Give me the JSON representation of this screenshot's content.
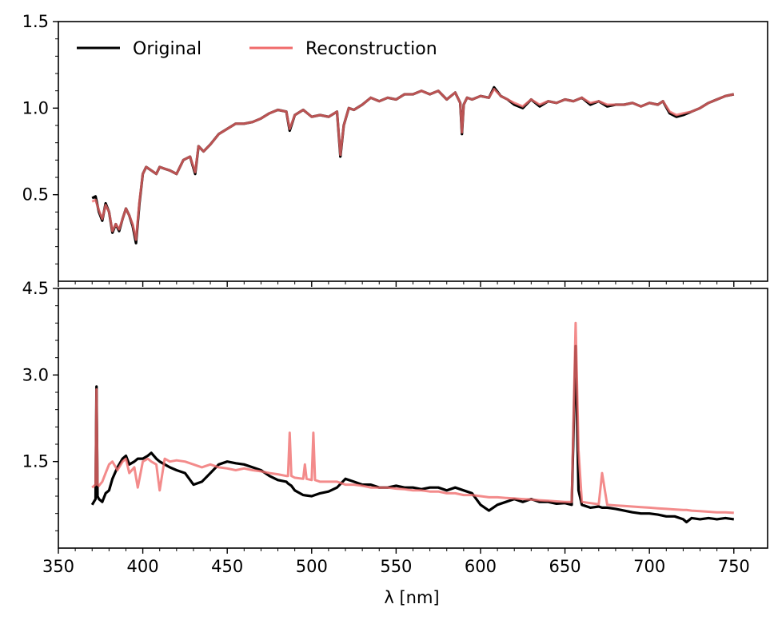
{
  "legend": {
    "original": "Original",
    "reconstruction": "Reconstruction",
    "placement": "top-left"
  },
  "colors": {
    "original": "#000000",
    "reconstruction": "#f06a6a",
    "overlap": "#8b0000",
    "axes": "#000000"
  },
  "chart_data": [
    {
      "type": "line",
      "panel": "top",
      "title": "",
      "xlabel": "",
      "ylabel": "",
      "xlim": [
        350,
        770
      ],
      "ylim": [
        0.0,
        1.5
      ],
      "yticks": [
        0.5,
        1.0,
        1.5
      ],
      "ytick_labels": [
        "0.5",
        "1.0",
        "1.5"
      ],
      "series": [
        {
          "name": "Original",
          "x": [
            370,
            372,
            374,
            376,
            378,
            380,
            382,
            384,
            386,
            388,
            390,
            392,
            394,
            396,
            398,
            400,
            402,
            405,
            408,
            410,
            413,
            416,
            420,
            424,
            428,
            431,
            433,
            436,
            440,
            445,
            450,
            455,
            460,
            465,
            470,
            475,
            480,
            485,
            487,
            490,
            495,
            500,
            505,
            510,
            515,
            517,
            519,
            522,
            525,
            530,
            535,
            540,
            545,
            550,
            555,
            560,
            565,
            570,
            575,
            580,
            585,
            588,
            589,
            590,
            592,
            595,
            600,
            605,
            608,
            612,
            616,
            620,
            625,
            630,
            635,
            640,
            645,
            650,
            655,
            660,
            665,
            670,
            675,
            680,
            685,
            690,
            695,
            700,
            705,
            708,
            712,
            716,
            720,
            725,
            730,
            735,
            740,
            745,
            750
          ],
          "y": [
            0.48,
            0.49,
            0.4,
            0.35,
            0.45,
            0.4,
            0.28,
            0.33,
            0.29,
            0.36,
            0.42,
            0.38,
            0.32,
            0.22,
            0.45,
            0.62,
            0.66,
            0.64,
            0.62,
            0.66,
            0.65,
            0.64,
            0.62,
            0.7,
            0.72,
            0.62,
            0.78,
            0.75,
            0.79,
            0.85,
            0.88,
            0.91,
            0.91,
            0.92,
            0.94,
            0.97,
            0.99,
            0.98,
            0.87,
            0.96,
            0.99,
            0.95,
            0.96,
            0.95,
            0.98,
            0.72,
            0.9,
            1.0,
            0.99,
            1.02,
            1.06,
            1.04,
            1.06,
            1.05,
            1.08,
            1.08,
            1.1,
            1.08,
            1.1,
            1.05,
            1.09,
            1.03,
            0.85,
            1.02,
            1.06,
            1.05,
            1.07,
            1.06,
            1.12,
            1.07,
            1.05,
            1.02,
            1.0,
            1.05,
            1.01,
            1.04,
            1.03,
            1.05,
            1.04,
            1.06,
            1.02,
            1.04,
            1.01,
            1.02,
            1.02,
            1.03,
            1.01,
            1.03,
            1.02,
            1.04,
            0.97,
            0.95,
            0.96,
            0.98,
            1.0,
            1.03,
            1.05,
            1.07,
            1.08
          ]
        },
        {
          "name": "Reconstruction",
          "x": [
            370,
            372,
            374,
            376,
            378,
            380,
            382,
            384,
            386,
            388,
            390,
            392,
            394,
            396,
            398,
            400,
            402,
            405,
            408,
            410,
            413,
            416,
            420,
            424,
            428,
            431,
            433,
            436,
            440,
            445,
            450,
            455,
            460,
            465,
            470,
            475,
            480,
            485,
            487,
            490,
            495,
            500,
            505,
            510,
            515,
            517,
            519,
            522,
            525,
            530,
            535,
            540,
            545,
            550,
            555,
            560,
            565,
            570,
            575,
            580,
            585,
            588,
            589,
            590,
            592,
            595,
            600,
            605,
            608,
            612,
            616,
            620,
            625,
            630,
            635,
            640,
            645,
            650,
            655,
            660,
            665,
            670,
            675,
            680,
            685,
            690,
            695,
            700,
            705,
            708,
            712,
            716,
            720,
            725,
            730,
            735,
            740,
            745,
            750
          ],
          "y": [
            0.46,
            0.47,
            0.41,
            0.36,
            0.44,
            0.4,
            0.29,
            0.33,
            0.3,
            0.36,
            0.42,
            0.38,
            0.33,
            0.24,
            0.46,
            0.62,
            0.66,
            0.64,
            0.62,
            0.66,
            0.65,
            0.64,
            0.62,
            0.7,
            0.72,
            0.63,
            0.78,
            0.75,
            0.79,
            0.85,
            0.88,
            0.91,
            0.91,
            0.92,
            0.94,
            0.97,
            0.99,
            0.98,
            0.88,
            0.96,
            0.99,
            0.95,
            0.96,
            0.95,
            0.98,
            0.73,
            0.9,
            1.0,
            0.99,
            1.02,
            1.06,
            1.04,
            1.06,
            1.05,
            1.08,
            1.08,
            1.1,
            1.08,
            1.1,
            1.05,
            1.09,
            1.03,
            0.86,
            1.02,
            1.06,
            1.05,
            1.07,
            1.06,
            1.11,
            1.07,
            1.05,
            1.03,
            1.01,
            1.05,
            1.02,
            1.04,
            1.03,
            1.05,
            1.04,
            1.06,
            1.03,
            1.04,
            1.02,
            1.02,
            1.02,
            1.03,
            1.01,
            1.03,
            1.02,
            1.04,
            0.98,
            0.96,
            0.97,
            0.98,
            1.0,
            1.03,
            1.05,
            1.07,
            1.08
          ]
        }
      ]
    },
    {
      "type": "line",
      "panel": "bottom",
      "title": "",
      "xlabel": "λ [nm]",
      "ylabel": "",
      "xlim": [
        350,
        770
      ],
      "ylim": [
        0.0,
        4.5
      ],
      "xticks": [
        350,
        400,
        450,
        500,
        550,
        600,
        650,
        700,
        750
      ],
      "xtick_labels": [
        "350",
        "400",
        "450",
        "500",
        "550",
        "600",
        "650",
        "700",
        "750"
      ],
      "yticks": [
        1.5,
        3.0,
        4.5
      ],
      "ytick_labels": [
        "1.5",
        "3.0",
        "4.5"
      ],
      "series": [
        {
          "name": "Original",
          "x": [
            370,
            372,
            372.6,
            373.2,
            374,
            376,
            378,
            380,
            382,
            385,
            388,
            390,
            392,
            395,
            397,
            400,
            403,
            405,
            408,
            410,
            413,
            416,
            420,
            425,
            430,
            435,
            440,
            445,
            450,
            455,
            460,
            465,
            470,
            475,
            480,
            485,
            486,
            487,
            488,
            490,
            495,
            500,
            505,
            510,
            515,
            520,
            525,
            530,
            535,
            540,
            545,
            550,
            555,
            560,
            565,
            570,
            575,
            580,
            585,
            590,
            595,
            600,
            605,
            610,
            615,
            620,
            625,
            630,
            635,
            640,
            645,
            650,
            654,
            656.3,
            658,
            660,
            665,
            670,
            672,
            675,
            680,
            685,
            690,
            695,
            700,
            705,
            710,
            715,
            720,
            722,
            725,
            730,
            735,
            740,
            745,
            750
          ],
          "y": [
            0.75,
            0.85,
            2.8,
            0.9,
            0.85,
            0.8,
            0.95,
            1.0,
            1.2,
            1.4,
            1.55,
            1.6,
            1.45,
            1.5,
            1.55,
            1.55,
            1.6,
            1.65,
            1.55,
            1.5,
            1.45,
            1.4,
            1.35,
            1.3,
            1.1,
            1.15,
            1.3,
            1.45,
            1.5,
            1.47,
            1.45,
            1.4,
            1.35,
            1.25,
            1.18,
            1.15,
            1.12,
            1.1,
            1.08,
            1.0,
            0.92,
            0.9,
            0.95,
            0.98,
            1.05,
            1.2,
            1.15,
            1.1,
            1.1,
            1.05,
            1.05,
            1.08,
            1.05,
            1.05,
            1.02,
            1.05,
            1.05,
            1.0,
            1.05,
            1.0,
            0.95,
            0.75,
            0.65,
            0.75,
            0.8,
            0.85,
            0.8,
            0.85,
            0.8,
            0.8,
            0.77,
            0.78,
            0.75,
            3.5,
            1.0,
            0.75,
            0.7,
            0.72,
            0.7,
            0.7,
            0.68,
            0.65,
            0.62,
            0.6,
            0.6,
            0.58,
            0.55,
            0.55,
            0.5,
            0.45,
            0.52,
            0.5,
            0.52,
            0.5,
            0.52,
            0.5
          ]
        },
        {
          "name": "Reconstruction",
          "x": [
            370,
            372,
            372.6,
            373.2,
            374,
            376,
            378,
            380,
            382,
            385,
            388,
            390,
            392,
            395,
            397,
            400,
            403,
            405,
            408,
            410,
            413,
            416,
            420,
            425,
            430,
            435,
            440,
            445,
            450,
            455,
            460,
            465,
            470,
            475,
            480,
            485,
            486,
            487,
            488,
            490,
            495,
            496,
            497,
            500,
            501,
            502,
            505,
            510,
            515,
            520,
            525,
            530,
            535,
            540,
            545,
            550,
            555,
            560,
            565,
            570,
            575,
            580,
            585,
            590,
            595,
            600,
            605,
            610,
            615,
            620,
            625,
            630,
            635,
            640,
            645,
            650,
            654,
            656.3,
            658,
            660,
            665,
            670,
            672,
            675,
            680,
            685,
            690,
            695,
            700,
            705,
            710,
            715,
            720,
            722,
            725,
            730,
            735,
            740,
            745,
            750
          ],
          "y": [
            1.05,
            1.1,
            2.75,
            1.1,
            1.08,
            1.15,
            1.3,
            1.45,
            1.5,
            1.35,
            1.5,
            1.55,
            1.3,
            1.4,
            1.05,
            1.5,
            1.55,
            1.5,
            1.45,
            1.0,
            1.55,
            1.5,
            1.52,
            1.5,
            1.45,
            1.4,
            1.45,
            1.4,
            1.38,
            1.35,
            1.38,
            1.35,
            1.33,
            1.3,
            1.28,
            1.25,
            1.25,
            2.0,
            1.25,
            1.22,
            1.2,
            1.45,
            1.2,
            1.18,
            2.0,
            1.18,
            1.15,
            1.15,
            1.15,
            1.1,
            1.1,
            1.08,
            1.05,
            1.05,
            1.05,
            1.03,
            1.02,
            1.0,
            1.0,
            0.98,
            0.98,
            0.95,
            0.95,
            0.92,
            0.92,
            0.9,
            0.88,
            0.88,
            0.87,
            0.86,
            0.85,
            0.84,
            0.83,
            0.82,
            0.81,
            0.8,
            0.8,
            3.9,
            1.7,
            0.8,
            0.78,
            0.76,
            1.3,
            0.75,
            0.74,
            0.73,
            0.72,
            0.71,
            0.7,
            0.69,
            0.68,
            0.67,
            0.66,
            0.66,
            0.65,
            0.64,
            0.63,
            0.62,
            0.62,
            0.61
          ]
        }
      ]
    }
  ]
}
